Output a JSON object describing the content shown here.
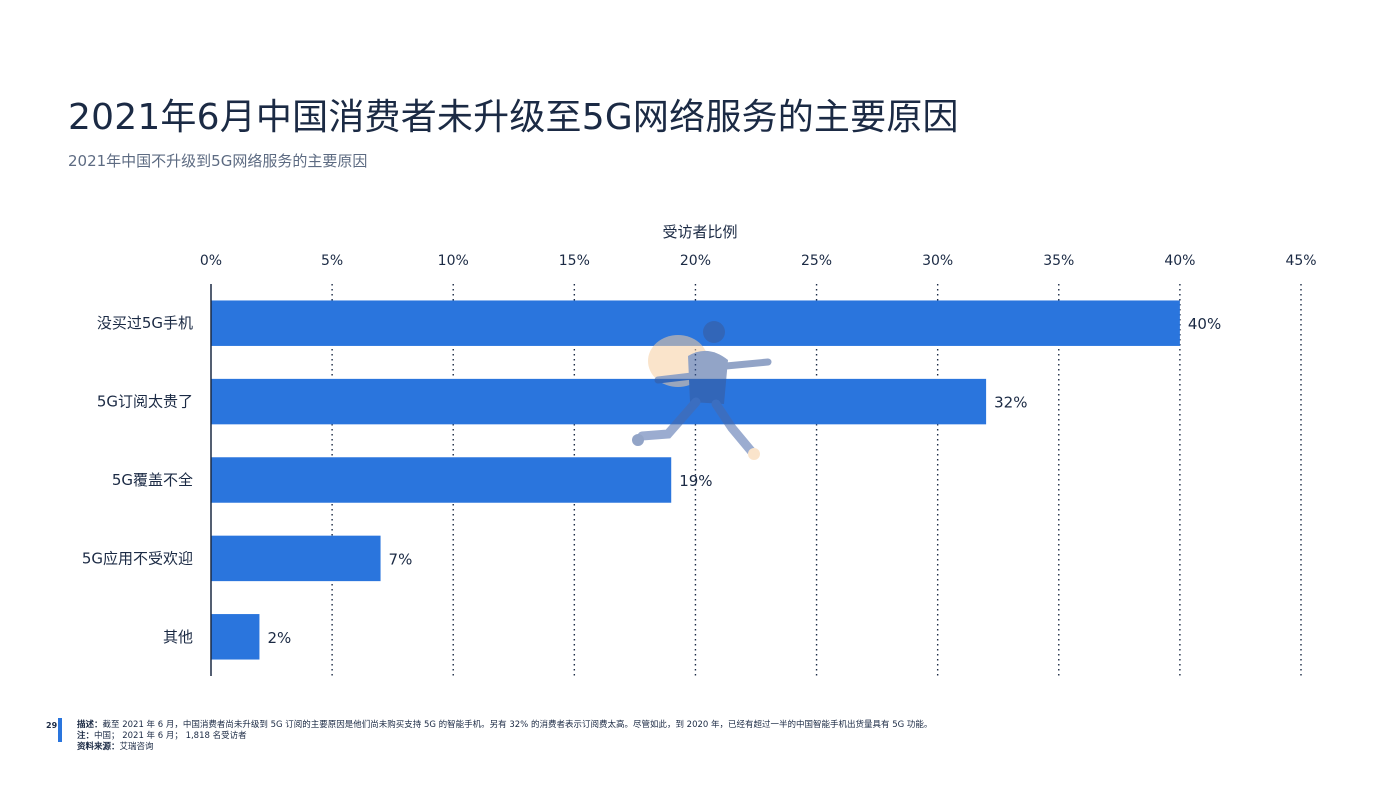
{
  "page": {
    "title": "2021年6月中国消费者未升级至5G网络服务的主要原因",
    "subtitle": "2021年中国不升级到5G网络服务的主要原因",
    "page_number": "29"
  },
  "footer": {
    "desc_label": "描述：",
    "desc_text": "截至 2021 年 6 月，中国消费者尚未升级到 5G 订阅的主要原因是他们尚未购买支持 5G 的智能手机。另有 32% 的消费者表示订阅费太高。尽管如此，到 2020 年，已经有超过一半的中国智能手机出货量具有 5G 功能。",
    "note_label": "注：",
    "note_text": "中国； 2021 年 6 月； 1,818 名受访者",
    "source_label": "资料来源：",
    "source_text": "艾瑞咨询"
  },
  "illustration": {
    "icon": "running-person-icon"
  },
  "chart_data": {
    "type": "bar",
    "orientation": "horizontal",
    "xlabel": "受访者比例",
    "xlim": [
      0,
      45
    ],
    "xticks": [
      0,
      5,
      10,
      15,
      20,
      25,
      30,
      35,
      40,
      45
    ],
    "tick_labels": [
      "0%",
      "5%",
      "10%",
      "15%",
      "20%",
      "25%",
      "30%",
      "35%",
      "40%",
      "45%"
    ],
    "categories": [
      "没买过5G手机",
      "5G订阅太贵了",
      "5G覆盖不全",
      "5G应用不受欢迎",
      "其他"
    ],
    "values": [
      40,
      32,
      19,
      7,
      2
    ],
    "value_labels": [
      "40%",
      "32%",
      "19%",
      "7%",
      "2%"
    ],
    "grid": "vertical-dotted",
    "colors": {
      "bar": "#2a75dd",
      "axis": "#1b2a44",
      "grid": "#1b2a44",
      "text": "#1b2a44"
    }
  }
}
